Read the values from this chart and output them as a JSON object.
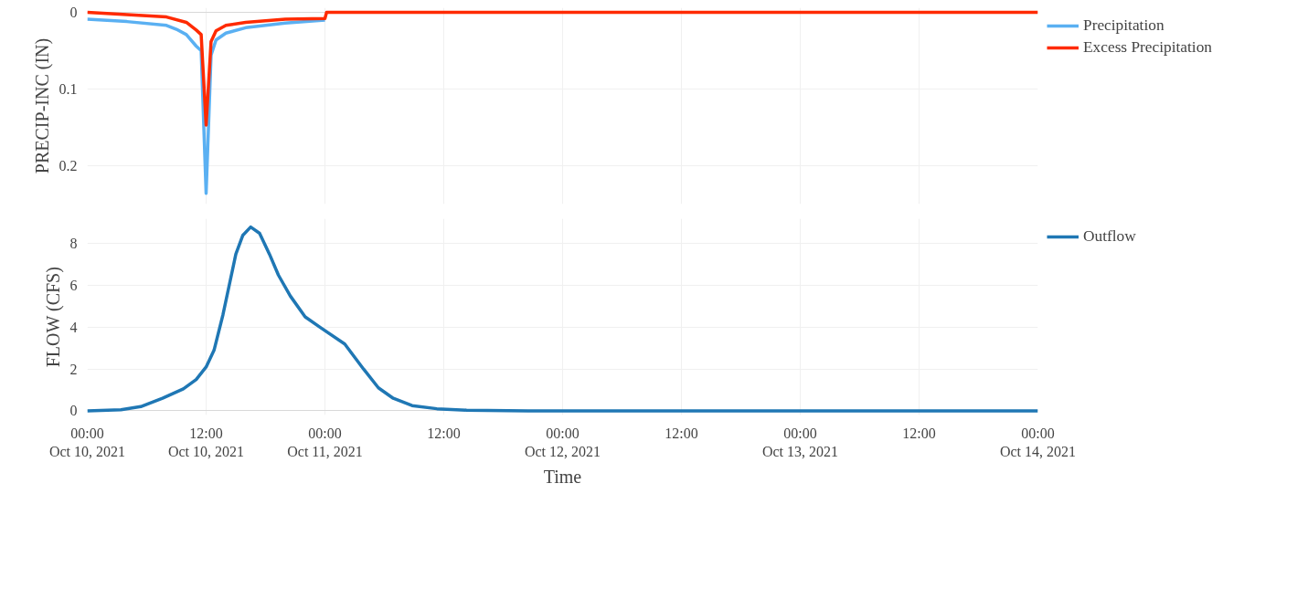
{
  "chart_data": [
    {
      "type": "line",
      "ylabel": "PRECIP-INC (IN)",
      "xlim": [
        "2021-10-10T00:00",
        "2021-10-14T00:00"
      ],
      "ylim": [
        0.25,
        -0.006
      ],
      "yticks": [
        0,
        0.1,
        0.2
      ],
      "tick_labels": "y",
      "grid": true,
      "legend": "right",
      "line_style": "solid",
      "marker": "none",
      "xticks": [
        {
          "value": "2021-10-10T00:00",
          "label": null
        },
        {
          "value": "2021-10-10T12:00",
          "label": null
        },
        {
          "value": "2021-10-11T00:00",
          "label": null
        },
        {
          "value": "2021-10-11T12:00",
          "label": null
        },
        {
          "value": "2021-10-12T00:00",
          "label": null
        },
        {
          "value": "2021-10-12T12:00",
          "label": null
        },
        {
          "value": "2021-10-13T00:00",
          "label": null
        },
        {
          "value": "2021-10-13T12:00",
          "label": null
        },
        {
          "value": "2021-10-14T00:00",
          "label": null
        }
      ],
      "series": [
        {
          "name": "Precipitation",
          "color": "#5ab0f2",
          "x": [
            "2021-10-10T00:00",
            "2021-10-10T04:00",
            "2021-10-10T08:00",
            "2021-10-10T09:00",
            "2021-10-10T10:00",
            "2021-10-10T11:00",
            "2021-10-10T11:30",
            "2021-10-10T12:00",
            "2021-10-10T12:30",
            "2021-10-10T13:00",
            "2021-10-10T14:00",
            "2021-10-10T16:00",
            "2021-10-10T20:00",
            "2021-10-11T00:00"
          ],
          "values": [
            0.009,
            0.012,
            0.017,
            0.022,
            0.029,
            0.044,
            0.05,
            0.236,
            0.056,
            0.036,
            0.027,
            0.02,
            0.014,
            0.01
          ]
        },
        {
          "name": "Excess Precipitation",
          "color": "#ff2a00",
          "x": [
            "2021-10-10T00:00",
            "2021-10-10T04:00",
            "2021-10-10T08:00",
            "2021-10-10T10:00",
            "2021-10-10T11:00",
            "2021-10-10T11:30",
            "2021-10-10T12:00",
            "2021-10-10T12:30",
            "2021-10-10T13:00",
            "2021-10-10T14:00",
            "2021-10-10T16:00",
            "2021-10-10T20:00",
            "2021-10-11T00:00",
            "2021-10-11T00:10",
            "2021-10-14T00:00"
          ],
          "values": [
            0,
            0.003,
            0.006,
            0.013,
            0.023,
            0.029,
            0.147,
            0.038,
            0.024,
            0.017,
            0.013,
            0.009,
            0.008,
            0,
            0
          ]
        }
      ]
    },
    {
      "type": "line",
      "xlabel": "Time",
      "ylabel": "FLOW (CFS)",
      "xlim": [
        "2021-10-10T00:00",
        "2021-10-14T00:00"
      ],
      "ylim": [
        -0.2,
        9.2
      ],
      "yticks": [
        0,
        2,
        4,
        6,
        8
      ],
      "grid": true,
      "legend": "top right",
      "line_style": "solid",
      "marker": "none",
      "xticks": [
        {
          "value": "2021-10-10T00:00",
          "label": "00:00\nOct 10, 2021"
        },
        {
          "value": "2021-10-10T12:00",
          "label": "12:00\nOct 10, 2021"
        },
        {
          "value": "2021-10-11T00:00",
          "label": "00:00\nOct 11, 2021"
        },
        {
          "value": "2021-10-11T12:00",
          "label": "12:00"
        },
        {
          "value": "2021-10-12T00:00",
          "label": "00:00\nOct 12, 2021"
        },
        {
          "value": "2021-10-12T12:00",
          "label": "12:00"
        },
        {
          "value": "2021-10-13T00:00",
          "label": "00:00\nOct 13, 2021"
        },
        {
          "value": "2021-10-13T12:00",
          "label": "12:00"
        },
        {
          "value": "2021-10-14T00:00",
          "label": "00:00\nOct 14, 2021"
        }
      ],
      "series": [
        {
          "name": "Outflow",
          "color": "#1f77b4",
          "x": [
            "2021-10-10T00:00",
            "2021-10-10T03:24",
            "2021-10-10T05:24",
            "2021-10-10T07:36",
            "2021-10-10T09:42",
            "2021-10-10T11:00",
            "2021-10-10T12:00",
            "2021-10-10T12:48",
            "2021-10-10T13:42",
            "2021-10-10T15:00",
            "2021-10-10T15:42",
            "2021-10-10T16:30",
            "2021-10-10T17:24",
            "2021-10-10T18:24",
            "2021-10-10T19:18",
            "2021-10-10T20:30",
            "2021-10-10T22:00",
            "2021-10-10T23:30",
            "2021-10-11T02:00",
            "2021-10-11T03:54",
            "2021-10-11T05:24",
            "2021-10-11T06:54",
            "2021-10-11T08:48",
            "2021-10-11T11:18",
            "2021-10-11T14:18",
            "2021-10-11T20:30",
            "2021-10-14T00:00"
          ],
          "values": [
            0,
            0.05,
            0.2,
            0.6,
            1.05,
            1.5,
            2.1,
            2.9,
            4.6,
            7.5,
            8.4,
            8.8,
            8.5,
            7.5,
            6.5,
            5.5,
            4.5,
            4.0,
            3.2,
            2.0,
            1.1,
            0.6,
            0.25,
            0.1,
            0.03,
            0,
            0
          ]
        }
      ]
    }
  ]
}
